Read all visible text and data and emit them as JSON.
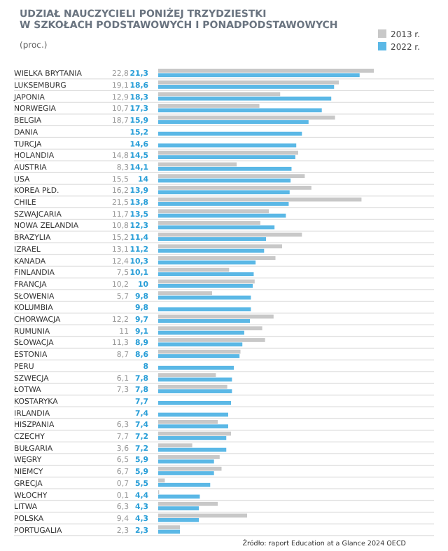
{
  "chart_data": {
    "type": "bar",
    "orientation": "horizontal",
    "title": "UDZIAŁ NAUCZYCIELI PONIŻEJ TRZYDZIESTKI W SZKOŁACH PODSTAWOWYCH I PONADPODSTAWOWYCH",
    "subtitle": "(proc.)",
    "annotations": [
      "Źródło: raport Education at a Glance 2024 OECD"
    ],
    "legend": "top right",
    "categories": [
      "WIELKA BRYTANIA",
      "LUKSEMBURG",
      "JAPONIA",
      "NORWEGIA",
      "BELGIA",
      "DANIA",
      "TURCJA",
      "HOLANDIA",
      "AUSTRIA",
      "USA",
      "KOREA PŁD.",
      "CHILE",
      "SZWAJCARIA",
      "NOWA ZELANDIA",
      "BRAZYLIA",
      "IZRAEL",
      "KANADA",
      "FINLANDIA",
      "FRANCJA",
      "SŁOWENIA",
      "KOLUMBIA",
      "CHORWACJA",
      "RUMUNIA",
      "SŁOWACJA",
      "ESTONIA",
      "PERU",
      "SZWECJA",
      "ŁOTWA",
      "KOSTARYKA",
      "IRLANDIA",
      "HISZPANIA",
      "CZECHY",
      "BUŁGARIA",
      "WĘGRY",
      "NIEMCY",
      "GRECJA",
      "WŁOCHY",
      "LITWA",
      "POLSKA",
      "PORTUGALIA"
    ],
    "series": [
      {
        "name": "2013 r.",
        "color": "#c8c8c8",
        "values": [
          22.8,
          19.1,
          12.9,
          10.7,
          18.7,
          null,
          null,
          14.8,
          8.3,
          15.5,
          16.2,
          21.5,
          11.7,
          10.8,
          15.2,
          13.1,
          12.4,
          7.5,
          10.2,
          5.7,
          null,
          12.2,
          11,
          11.3,
          8.7,
          null,
          6.1,
          7.3,
          null,
          null,
          6.3,
          7.7,
          3.6,
          6.5,
          6.7,
          0.7,
          0.1,
          6.3,
          9.4,
          2.3
        ],
        "value_labels": [
          "22,8",
          "19,1",
          "12,9",
          "10,7",
          "18,7",
          null,
          null,
          "14,8",
          "8,3",
          "15,5",
          "16,2",
          "21,5",
          "11,7",
          "10,8",
          "15,2",
          "13,1",
          "12,4",
          "7,5",
          "10,2",
          "5,7",
          null,
          "12,2",
          "11",
          "11,3",
          "8,7",
          null,
          "6,1",
          "7,3",
          null,
          null,
          "6,3",
          "7,7",
          "3,6",
          "6,5",
          "6,7",
          "0,7",
          "0,1",
          "6,3",
          "9,4",
          "2,3"
        ]
      },
      {
        "name": "2022 r.",
        "color": "#5bb8e6",
        "values": [
          21.3,
          18.6,
          18.3,
          17.3,
          15.9,
          15.2,
          14.6,
          14.5,
          14.1,
          14,
          13.9,
          13.8,
          13.5,
          12.3,
          11.4,
          11.2,
          10.3,
          10.1,
          10,
          9.8,
          9.8,
          9.7,
          9.1,
          8.9,
          8.6,
          8,
          7.8,
          7.8,
          7.7,
          7.4,
          7.4,
          7.2,
          7.2,
          5.9,
          5.9,
          5.5,
          4.4,
          4.3,
          4.3,
          2.3
        ],
        "value_labels": [
          "21,3",
          "18,6",
          "18,3",
          "17,3",
          "15,9",
          "15,2",
          "14,6",
          "14,5",
          "14,1",
          "14",
          "13,9",
          "13,8",
          "13,5",
          "12,3",
          "11,4",
          "11,2",
          "10,3",
          "10,1",
          "10",
          "9,8",
          "9,8",
          "9,7",
          "9,1",
          "8,9",
          "8,6",
          "8",
          "7,8",
          "7,8",
          "7,7",
          "7,4",
          "7,4",
          "7,2",
          "7,2",
          "5,9",
          "5,9",
          "5,5",
          "4,4",
          "4,3",
          "4,3",
          "2,3"
        ]
      }
    ]
  }
}
